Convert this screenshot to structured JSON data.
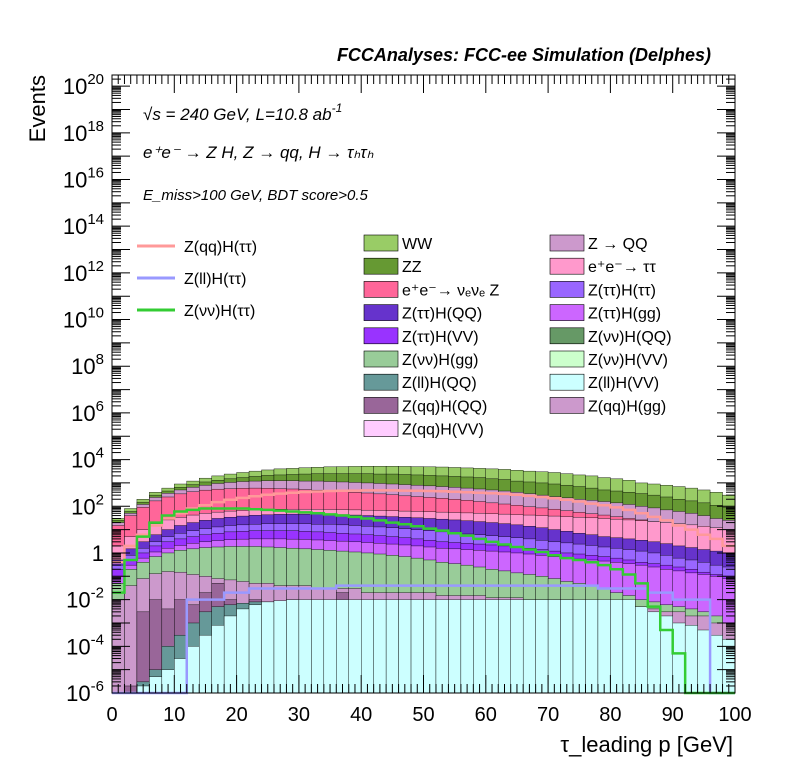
{
  "chart_data": {
    "type": "bar",
    "title": "FCCAnalyses: FCC-ee Simulation (Delphes)",
    "annotations": {
      "line1_prefix": "√s = 240 GeV, L=10.8 ab",
      "line1_sup": "-1",
      "line2": "e⁺e⁻ → Z H, Z → qq, H → τₕτₕ",
      "line3": "E_miss>100 GeV, BDT score>0.5"
    },
    "xlabel": "τ_leading p [GeV]",
    "ylabel": "Events",
    "xlim": [
      0,
      100
    ],
    "ylim": [
      1e-06,
      3e+20
    ],
    "log_y": true,
    "x_ticks": [
      "0",
      "10",
      "20",
      "30",
      "40",
      "50",
      "60",
      "70",
      "80",
      "90",
      "100"
    ],
    "y_ticks": [
      "10^-6",
      "10^-4",
      "10^-2",
      "1",
      "10^2",
      "10^4",
      "10^6",
      "10^8",
      "10^10",
      "10^12",
      "10^14",
      "10^16",
      "10^18",
      "10^20"
    ],
    "bin_width": 2,
    "bins_x": [
      1,
      3,
      5,
      7,
      9,
      11,
      13,
      15,
      17,
      19,
      21,
      23,
      25,
      27,
      29,
      31,
      33,
      35,
      37,
      39,
      41,
      43,
      45,
      47,
      49,
      51,
      53,
      55,
      57,
      59,
      61,
      63,
      65,
      67,
      69,
      71,
      73,
      75,
      77,
      79,
      81,
      83,
      85,
      87,
      89,
      91,
      93,
      95,
      97,
      99
    ],
    "stack_tops": [
      {
        "name": "WW",
        "color": "#99cc66",
        "values": [
          30,
          80,
          200,
          400,
          600,
          900,
          1200,
          1600,
          2000,
          2400,
          2800,
          3200,
          3600,
          4000,
          4200,
          4500,
          4700,
          4900,
          5000,
          5100,
          5200,
          5200,
          5200,
          5100,
          5000,
          4900,
          4800,
          4600,
          4400,
          4200,
          4000,
          3800,
          3500,
          3200,
          3000,
          2800,
          2500,
          2200,
          2000,
          1700,
          1500,
          1300,
          1000,
          900,
          800,
          700,
          600,
          500,
          400,
          300
        ]
      },
      {
        "name": "ZZ",
        "color": "#669933",
        "values": [
          25,
          60,
          150,
          300,
          450,
          650,
          850,
          1100,
          1300,
          1500,
          1700,
          1900,
          2100,
          2200,
          2300,
          2400,
          2500,
          2500,
          2500,
          2500,
          2500,
          2400,
          2400,
          2300,
          2200,
          2100,
          2000,
          1900,
          1800,
          1700,
          1500,
          1400,
          1200,
          1100,
          1000,
          900,
          800,
          700,
          600,
          500,
          450,
          400,
          350,
          300,
          250,
          200,
          170,
          140,
          110,
          90
        ]
      },
      {
        "name": "Z → QQ",
        "color": "#cc99cc",
        "values": [
          20,
          50,
          120,
          240,
          360,
          500,
          650,
          800,
          950,
          1050,
          1150,
          1200,
          1250,
          1250,
          1250,
          1200,
          1200,
          1150,
          1100,
          1050,
          1000,
          950,
          900,
          850,
          800,
          750,
          700,
          650,
          600,
          550,
          500,
          450,
          400,
          350,
          300,
          260,
          230,
          200,
          180,
          160,
          140,
          120,
          100,
          85,
          70,
          60,
          50,
          40,
          30,
          25
        ]
      },
      {
        "name": "e⁺e⁻ → νₑνₑ Z",
        "color": "#ff6699",
        "values": [
          15,
          40,
          90,
          170,
          250,
          340,
          420,
          490,
          540,
          570,
          590,
          600,
          590,
          570,
          550,
          520,
          490,
          460,
          430,
          400,
          370,
          340,
          310,
          280,
          260,
          240,
          220,
          200,
          180,
          160,
          140,
          125,
          110,
          95,
          85,
          75,
          65,
          55,
          48,
          42,
          36,
          30,
          26,
          22,
          19,
          16,
          14,
          12,
          10,
          8
        ]
      },
      {
        "name": "e⁺e⁻ → ττ",
        "color": "#ff99cc",
        "values": [
          2,
          5,
          10,
          18,
          26,
          34,
          42,
          50,
          56,
          62,
          66,
          70,
          72,
          74,
          75,
          75,
          74,
          73,
          72,
          70,
          68,
          66,
          64,
          62,
          60,
          58,
          56,
          54,
          52,
          50,
          48,
          46,
          44,
          42,
          40,
          38,
          36,
          34,
          32,
          30,
          28,
          26,
          24,
          22,
          20,
          18,
          16,
          14,
          12,
          10
        ]
      },
      {
        "name": "Z(ττ)H(QQ)",
        "color": "#6633cc",
        "values": [
          0.5,
          1.5,
          3,
          6,
          10,
          15,
          20,
          25,
          30,
          34,
          38,
          41,
          43,
          45,
          46,
          46,
          46,
          45,
          44,
          42,
          40,
          38,
          36,
          34,
          32,
          30,
          28,
          26,
          24,
          22,
          20,
          18,
          16,
          14,
          12,
          10,
          8.5,
          7,
          6,
          5,
          4.5,
          4,
          3.5,
          3,
          2.5,
          2,
          1.7,
          1.4,
          1.2,
          1
        ]
      },
      {
        "name": "Z(ττ)H(ττ)",
        "color": "#9966ff",
        "values": [
          0.3,
          0.8,
          1.6,
          3,
          5,
          7,
          9,
          11,
          13,
          15,
          16,
          17,
          18,
          18,
          18,
          18,
          17,
          17,
          16,
          15,
          14,
          13,
          12,
          11,
          10,
          9,
          8,
          7,
          6.5,
          6,
          5.5,
          5,
          4.5,
          4,
          3.5,
          3,
          2.7,
          2.4,
          2.1,
          1.8,
          1.6,
          1.4,
          1.2,
          1,
          0.8,
          0.6,
          0.5,
          0.4,
          0.3,
          0.25
        ]
      },
      {
        "name": "Z(ττ)H(VV)",
        "color": "#9933ff",
        "values": [
          0.2,
          0.5,
          1,
          2,
          3,
          4,
          5,
          6,
          7,
          8,
          8.5,
          9,
          9,
          9,
          9,
          8.5,
          8,
          7.5,
          7,
          6.5,
          6,
          5.5,
          5,
          4.5,
          4,
          3.5,
          3,
          2.8,
          2.6,
          2.4,
          2.2,
          2,
          1.8,
          1.6,
          1.4,
          1.2,
          1,
          0.9,
          0.8,
          0.7,
          0.6,
          0.5,
          0.4,
          0.35,
          0.3,
          0.25,
          0.2,
          0.15,
          0.12,
          0.1
        ]
      },
      {
        "name": "Z(ττ)H(gg)",
        "color": "#cc66ff",
        "values": [
          0.1,
          0.3,
          0.6,
          1.1,
          1.6,
          2.1,
          2.6,
          3,
          3.4,
          3.7,
          3.9,
          4,
          4,
          4,
          3.9,
          3.8,
          3.6,
          3.4,
          3.2,
          3,
          2.8,
          2.6,
          2.4,
          2.2,
          2,
          1.8,
          1.6,
          1.5,
          1.4,
          1.3,
          1.2,
          1.1,
          1,
          0.9,
          0.8,
          0.7,
          0.6,
          0.55,
          0.5,
          0.45,
          0.4,
          0.35,
          0.3,
          0.25,
          0.2,
          0.17,
          0.14,
          0.12,
          0.1,
          0.08
        ]
      },
      {
        "name": "Z(νν)H(gg)",
        "color": "#99cc99",
        "values": [
          0.05,
          0.2,
          0.4,
          0.7,
          1,
          1.3,
          1.5,
          1.7,
          1.8,
          1.9,
          1.9,
          1.9,
          1.8,
          1.7,
          1.6,
          1.5,
          1.4,
          1.3,
          1.2,
          1.1,
          1,
          0.9,
          0.8,
          0.7,
          0.6,
          0.5,
          0.4,
          0.35,
          0.3,
          0.25,
          0.2,
          0.17,
          0.14,
          0.12,
          0.1,
          0.08,
          0.06,
          0.05,
          0.04,
          0.03,
          0.02,
          0.015,
          0.01,
          0.008,
          0.006,
          0.005,
          0.004,
          0.003,
          0.002,
          0.001
        ]
      },
      {
        "name": "Z(qq)H(gg)",
        "color": "#cc99cc",
        "values": [
          0.01,
          0.04,
          0.08,
          0.13,
          0.16,
          0.15,
          0.12,
          0.1,
          0.08,
          0.07,
          0.06,
          0.05,
          0.05,
          0.04,
          0.04,
          0.04,
          0.03,
          0.03,
          0.03,
          0.03,
          0.02,
          0.02,
          0.02,
          0.02,
          0.02,
          0.02,
          0.015,
          0.015,
          0.015,
          0.015,
          0.012,
          0.012,
          0.012,
          0.01,
          0.01,
          0.01,
          0.01,
          0.008,
          0.008,
          0.008,
          0.007,
          0.006,
          0.005,
          0.004,
          0.003,
          0.003,
          0.002,
          0.002,
          0.001,
          0.001
        ]
      },
      {
        "name": "Z(qq)H(QQ)",
        "color": "#996699",
        "values": [
          1e-06,
          2e-06,
          0.003,
          0.01,
          0.004,
          0.01,
          0.006,
          0.02,
          0.05,
          0.01,
          0.003,
          0.01,
          0.001,
          0.004,
          0.01,
          0.002,
          0.003,
          0.001,
          0.02,
          0.001,
          0.004,
          0.001,
          0.005,
          0.003,
          0.001,
          0.002,
          0.001,
          0.001,
          0.003,
          0.002,
          0.001,
          0.001,
          0.002,
          0.001,
          0.002,
          0.001,
          0.001,
          0.001,
          0.002,
          0.001,
          0.0008,
          0.0006,
          0.0005,
          0.0004,
          0.0003,
          0.0002,
          0.0002,
          0.0001,
          0.0001,
          0.0001
        ]
      },
      {
        "name": "Z(ll)H(QQ)",
        "color": "#669999",
        "values": [
          1e-06,
          1e-06,
          3e-06,
          1e-05,
          0.0001,
          0.0003,
          0.001,
          0.003,
          0.005,
          0.006,
          0.007,
          0.008,
          0.008,
          0.008,
          0.008,
          0.008,
          0.008,
          0.008,
          0.008,
          0.008,
          0.008,
          0.008,
          0.008,
          0.008,
          0.008,
          0.008,
          0.008,
          0.008,
          0.008,
          0.008,
          0.008,
          0.008,
          0.008,
          0.008,
          0.008,
          0.008,
          0.008,
          0.008,
          0.008,
          0.008,
          0.008,
          0.008,
          0.0002,
          0.0002,
          0.0001,
          0.0001,
          0.0001,
          5e-05,
          3e-05,
          2e-05
        ]
      },
      {
        "name": "Z(ll)H(VV)",
        "color": "#ccffff",
        "values": [
          1e-06,
          1e-06,
          2e-06,
          5e-06,
          1e-05,
          3e-05,
          0.0001,
          0.0003,
          0.0008,
          0.002,
          0.004,
          0.006,
          0.008,
          0.009,
          0.01,
          0.01,
          0.01,
          0.01,
          0.01,
          0.01,
          0.01,
          0.01,
          0.01,
          0.01,
          0.01,
          0.01,
          0.01,
          0.01,
          0.01,
          0.01,
          0.01,
          0.01,
          0.01,
          0.01,
          0.01,
          0.01,
          0.01,
          0.01,
          0.01,
          0.01,
          0.01,
          0.01,
          0.005,
          0.003,
          0.002,
          0.001,
          0.0008,
          0.0005,
          0.0003,
          0.0002
        ]
      }
    ],
    "overlay_lines": [
      {
        "name": "Z(qq)H(ττ)",
        "color": "#ff9999",
        "values": [
          0.4,
          2,
          6,
          15,
          30,
          50,
          80,
          110,
          150,
          190,
          230,
          270,
          310,
          350,
          380,
          410,
          430,
          450,
          460,
          470,
          480,
          480,
          480,
          470,
          460,
          450,
          440,
          420,
          400,
          380,
          360,
          340,
          310,
          280,
          250,
          220,
          190,
          160,
          130,
          110,
          90,
          70,
          50,
          35,
          25,
          15,
          10,
          6,
          4,
          2
        ]
      },
      {
        "name": "Z(ll)H(ττ)",
        "color": "#9999ff",
        "values": [
          1e-06,
          1e-06,
          1e-06,
          1e-06,
          1e-06,
          1e-06,
          0.01,
          0.01,
          0.01,
          0.02,
          0.02,
          0.03,
          0.03,
          0.03,
          0.03,
          0.03,
          0.03,
          0.03,
          0.04,
          0.04,
          0.04,
          0.04,
          0.04,
          0.04,
          0.04,
          0.04,
          0.04,
          0.04,
          0.04,
          0.04,
          0.04,
          0.04,
          0.04,
          0.04,
          0.04,
          0.04,
          0.04,
          0.04,
          0.04,
          0.03,
          0.03,
          0.03,
          0.03,
          0.02,
          0.02,
          0.01,
          0.01,
          0.01,
          1e-06,
          1e-06
        ]
      },
      {
        "name": "Z(νν)H(ττ)",
        "color": "#33cc33",
        "values": [
          0.02,
          0.5,
          5,
          20,
          40,
          60,
          70,
          80,
          80,
          80,
          80,
          75,
          70,
          65,
          60,
          55,
          50,
          45,
          40,
          35,
          30,
          25,
          20,
          17,
          14,
          11,
          9,
          7,
          5.5,
          4,
          3,
          2.3,
          1.8,
          1.4,
          1.1,
          0.8,
          0.6,
          0.5,
          0.4,
          0.3,
          0.2,
          0.12,
          0.05,
          0.005,
          0.0005,
          5e-05,
          1e-06,
          1e-06,
          1e-06,
          1e-06
        ]
      }
    ],
    "legend_left": [
      {
        "name": "Z(qq)H(ττ)",
        "color": "#ff9999"
      },
      {
        "name": "Z(ll)H(ττ)",
        "color": "#9999ff"
      },
      {
        "name": "Z(νν)H(ττ)",
        "color": "#33cc33"
      }
    ],
    "legend_mid": [
      {
        "name": "WW",
        "color": "#99cc66"
      },
      {
        "name": "ZZ",
        "color": "#669933"
      },
      {
        "name": "e⁺e⁻→ νₑνₑ Z",
        "color": "#ff6699"
      },
      {
        "name": "Z(ττ)H(QQ)",
        "color": "#6633cc"
      },
      {
        "name": "Z(ττ)H(VV)",
        "color": "#9933ff"
      },
      {
        "name": "Z(νν)H(gg)",
        "color": "#99cc99"
      },
      {
        "name": "Z(ll)H(QQ)",
        "color": "#669999"
      },
      {
        "name": "Z(qq)H(QQ)",
        "color": "#996699"
      },
      {
        "name": "Z(qq)H(VV)",
        "color": "#ffccff"
      }
    ],
    "legend_right": [
      {
        "name": "Z → QQ",
        "color": "#cc99cc"
      },
      {
        "name": "e⁺e⁻→ ττ",
        "color": "#ff99cc"
      },
      {
        "name": "Z(ττ)H(ττ)",
        "color": "#9966ff"
      },
      {
        "name": "Z(ττ)H(gg)",
        "color": "#cc66ff"
      },
      {
        "name": "Z(νν)H(QQ)",
        "color": "#669966"
      },
      {
        "name": "Z(νν)H(VV)",
        "color": "#ccffcc"
      },
      {
        "name": "Z(ll)H(VV)",
        "color": "#ccffff"
      },
      {
        "name": "Z(qq)H(gg)",
        "color": "#cc99cc"
      }
    ]
  }
}
